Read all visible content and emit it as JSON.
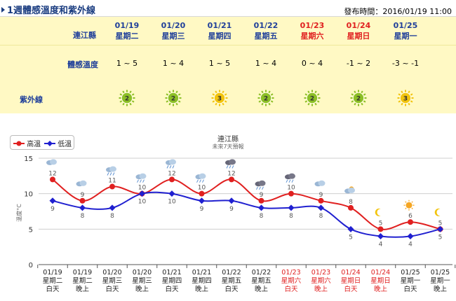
{
  "header": {
    "title": "1週體感溫度和紫外線",
    "published": "發布時間：2016/01/19 11:00"
  },
  "table": {
    "county": "連江縣",
    "apparent_label": "體感溫度",
    "uv_label": "紫外線",
    "days": [
      {
        "date": "01/19",
        "weekday": "星期二",
        "weekend": false,
        "temp": "1 ~ 5",
        "uv": "2",
        "uv_color": "#8cbf26"
      },
      {
        "date": "01/20",
        "weekday": "星期三",
        "weekend": false,
        "temp": "1 ~ 4",
        "uv": "2",
        "uv_color": "#8cbf26"
      },
      {
        "date": "01/21",
        "weekday": "星期四",
        "weekend": false,
        "temp": "1 ~ 5",
        "uv": "3",
        "uv_color": "#f2c40d"
      },
      {
        "date": "01/22",
        "weekday": "星期五",
        "weekend": false,
        "temp": "1 ~ 4",
        "uv": "2",
        "uv_color": "#8cbf26"
      },
      {
        "date": "01/23",
        "weekday": "星期六",
        "weekend": true,
        "temp": "0 ~ 4",
        "uv": "2",
        "uv_color": "#8cbf26"
      },
      {
        "date": "01/24",
        "weekday": "星期日",
        "weekend": true,
        "temp": "-1 ~ 2",
        "uv": "2",
        "uv_color": "#8cbf26"
      },
      {
        "date": "01/25",
        "weekday": "星期一",
        "weekend": false,
        "temp": "-3 ~ -1",
        "uv": "3",
        "uv_color": "#f2c40d"
      }
    ]
  },
  "chart_data": {
    "type": "line",
    "title": "連江縣",
    "subtitle": "未來7天預報",
    "ylabel": "溫度°C",
    "ylim": [
      0,
      15
    ],
    "yticks": [
      0,
      5,
      10,
      15
    ],
    "legend_position": "top-left",
    "categories": [
      {
        "date": "01/19",
        "weekday": "星期二",
        "period": "白天",
        "weekend": false,
        "icon": "cloudy-icon"
      },
      {
        "date": "01/19",
        "weekday": "星期二",
        "period": "晚上",
        "weekend": false,
        "icon": "cloudy-icon"
      },
      {
        "date": "01/20",
        "weekday": "星期三",
        "period": "白天",
        "weekend": false,
        "icon": "cloudy-rain-icon"
      },
      {
        "date": "01/20",
        "weekday": "星期三",
        "period": "晚上",
        "weekend": false,
        "icon": "cloudy-rain-icon"
      },
      {
        "date": "01/21",
        "weekday": "星期四",
        "period": "白天",
        "weekend": false,
        "icon": "cloudy-rain-icon"
      },
      {
        "date": "01/21",
        "weekday": "星期四",
        "period": "晚上",
        "weekend": false,
        "icon": "cloudy-rain-icon"
      },
      {
        "date": "01/22",
        "weekday": "星期五",
        "period": "白天",
        "weekend": false,
        "icon": "dark-rain-icon"
      },
      {
        "date": "01/22",
        "weekday": "星期五",
        "period": "晚上",
        "weekend": false,
        "icon": "dark-rain-icon"
      },
      {
        "date": "01/23",
        "weekday": "星期六",
        "period": "白天",
        "weekend": true,
        "icon": "dark-rain-icon"
      },
      {
        "date": "01/23",
        "weekday": "星期六",
        "period": "晚上",
        "weekend": true,
        "icon": "cloudy-icon"
      },
      {
        "date": "01/24",
        "weekday": "星期日",
        "period": "白天",
        "weekend": true,
        "icon": "cloudy-sun-icon"
      },
      {
        "date": "01/24",
        "weekday": "星期日",
        "period": "晚上",
        "weekend": true,
        "icon": "moon-icon"
      },
      {
        "date": "01/25",
        "weekday": "星期一",
        "period": "白天",
        "weekend": false,
        "icon": "sun-icon"
      },
      {
        "date": "01/25",
        "weekday": "星期一",
        "period": "晚上",
        "weekend": false,
        "icon": "moon-icon"
      }
    ],
    "series": [
      {
        "name": "高溫",
        "color": "#e02020",
        "values": [
          12,
          9,
          11,
          10,
          12,
          10,
          12,
          9,
          10,
          9,
          8,
          5,
          6,
          5
        ]
      },
      {
        "name": "低溫",
        "color": "#2020d0",
        "values": [
          9,
          8,
          8,
          10,
          10,
          9,
          9,
          8,
          8,
          8,
          5,
          4,
          4,
          5
        ]
      }
    ]
  }
}
